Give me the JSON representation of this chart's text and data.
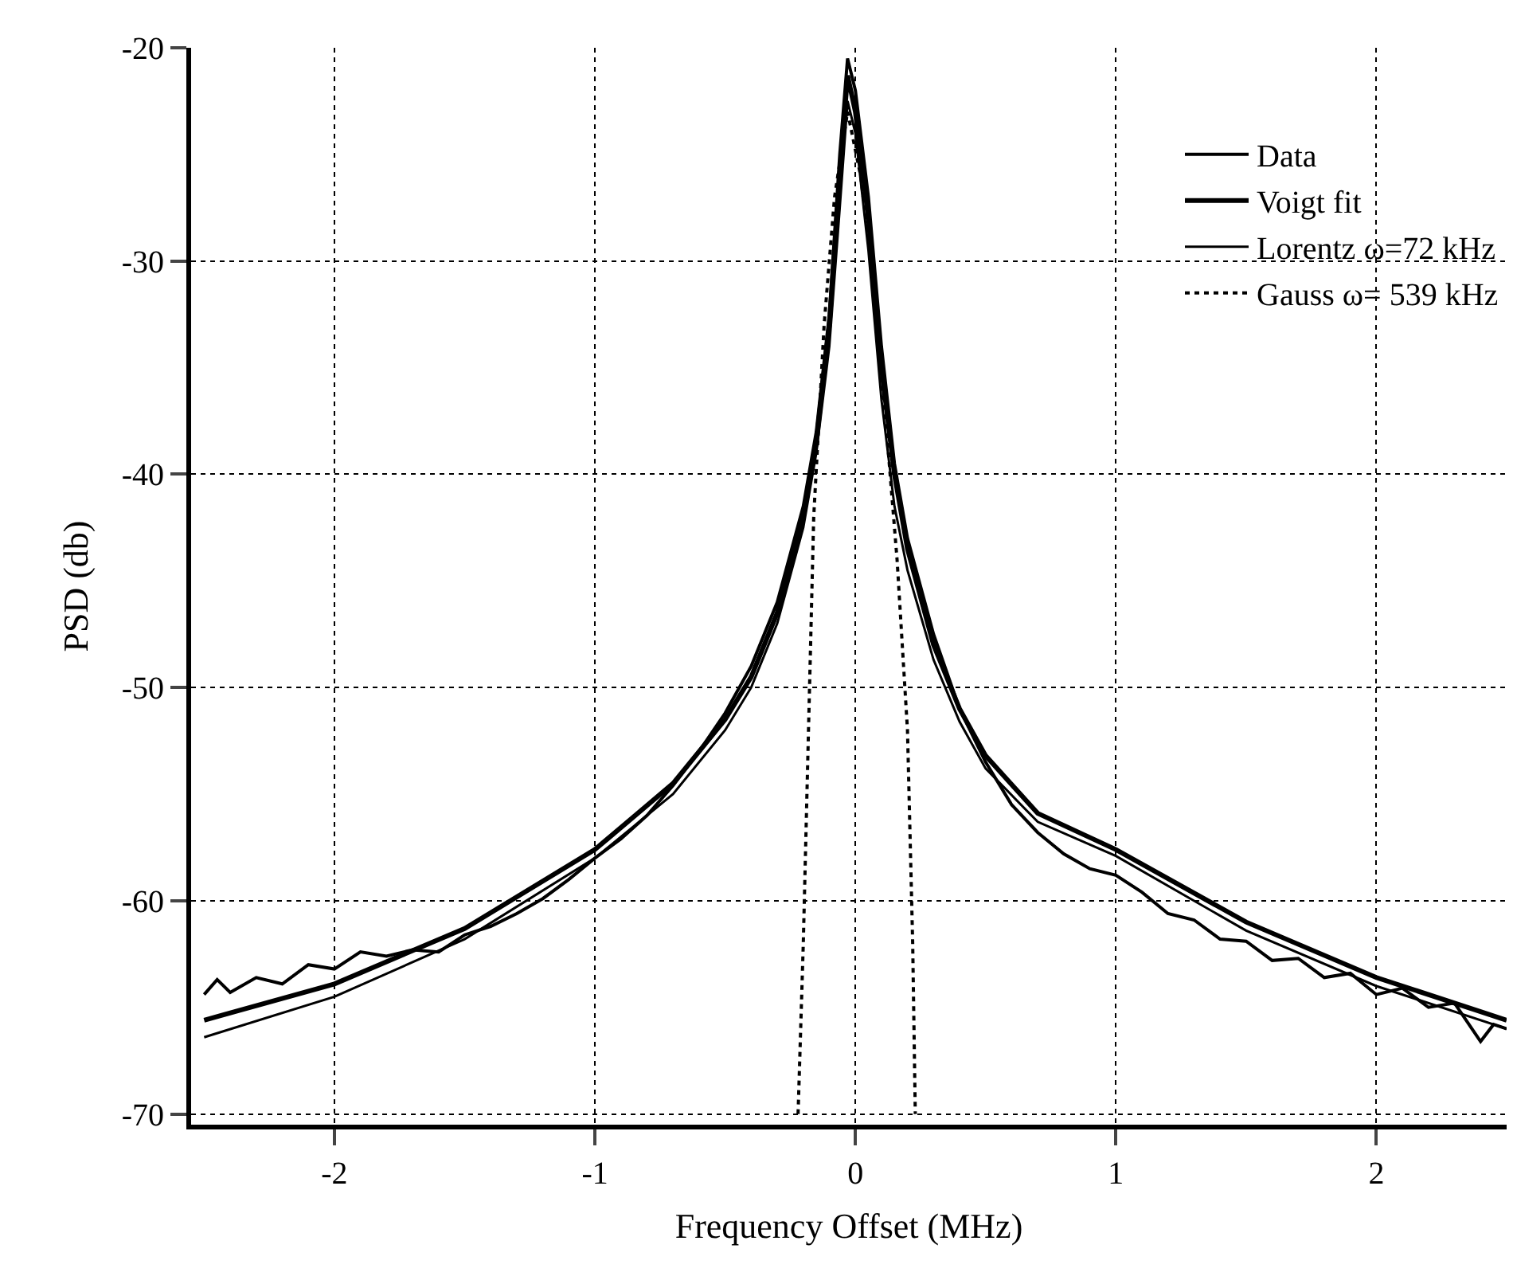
{
  "chart_data": {
    "type": "line",
    "xlabel": "Frequency Offset (MHz)",
    "ylabel": "PSD (db)",
    "xlim": [
      -2.55,
      2.5
    ],
    "xticks": [
      -2,
      -1,
      0,
      1,
      2
    ],
    "ylim": [
      -70.5,
      -20
    ],
    "yticks": [
      -70,
      -60,
      -50,
      -40,
      -30,
      -20
    ],
    "grid": true,
    "legend": "top right",
    "marker": "none",
    "series": [
      {
        "name": "Data",
        "color": "#000000",
        "line_style": "solid",
        "x": [
          -2.5,
          -2.45,
          -2.4,
          -2.3,
          -2.2,
          -2.1,
          -2.0,
          -1.9,
          -1.8,
          -1.7,
          -1.6,
          -1.5,
          -1.4,
          -1.3,
          -1.2,
          -1.1,
          -1.0,
          -0.9,
          -0.8,
          -0.7,
          -0.6,
          -0.5,
          -0.4,
          -0.3,
          -0.2,
          -0.15,
          -0.1,
          -0.06,
          -0.03,
          0.0,
          0.05,
          0.1,
          0.15,
          0.2,
          0.3,
          0.4,
          0.5,
          0.6,
          0.7,
          0.8,
          0.9,
          1.0,
          1.1,
          1.2,
          1.3,
          1.4,
          1.5,
          1.6,
          1.7,
          1.8,
          1.9,
          2.0,
          2.1,
          2.2,
          2.3,
          2.4,
          2.45,
          2.5
        ],
        "values": [
          -64.4,
          -63.7,
          -64.3,
          -63.6,
          -63.9,
          -63.0,
          -63.2,
          -62.4,
          -62.6,
          -62.3,
          -62.4,
          -61.6,
          -61.2,
          -60.6,
          -59.9,
          -59.0,
          -58.0,
          -57.1,
          -56.0,
          -54.6,
          -53.0,
          -51.2,
          -49.0,
          -46.0,
          -41.5,
          -38,
          -32.5,
          -25,
          -20.5,
          -22,
          -27,
          -34,
          -39.5,
          -43,
          -47.5,
          -51,
          -53.5,
          -55.5,
          -56.8,
          -57.8,
          -58.5,
          -58.8,
          -59.6,
          -60.6,
          -60.9,
          -61.8,
          -61.9,
          -62.8,
          -62.7,
          -63.6,
          -63.4,
          -64.4,
          -64.1,
          -65.0,
          -64.8,
          -66.6,
          -65.8,
          -66.0
        ]
      },
      {
        "name": "Voigt fit",
        "color": "#000000",
        "line_style": "solid",
        "x": [
          -2.5,
          -2,
          -1.5,
          -1,
          -0.7,
          -0.5,
          -0.4,
          -0.3,
          -0.2,
          -0.15,
          -0.1,
          -0.06,
          -0.03,
          0,
          0.05,
          0.1,
          0.15,
          0.2,
          0.3,
          0.4,
          0.5,
          0.7,
          1,
          1.5,
          2,
          2.5
        ],
        "values": [
          -65.6,
          -63.9,
          -61.3,
          -57.6,
          -54.5,
          -51.5,
          -49.5,
          -46.5,
          -42,
          -38.5,
          -33,
          -26,
          -21.3,
          -23,
          -28,
          -35,
          -40,
          -43.5,
          -48,
          -51,
          -53.2,
          -55.9,
          -57.6,
          -61.0,
          -63.6,
          -65.6
        ]
      },
      {
        "name": "Lorentz ω=72 kHz",
        "color": "#000000",
        "line_style": "solid",
        "x": [
          -2.5,
          -2,
          -1.5,
          -1,
          -0.7,
          -0.5,
          -0.4,
          -0.3,
          -0.2,
          -0.15,
          -0.1,
          -0.06,
          -0.03,
          0,
          0.05,
          0.1,
          0.15,
          0.2,
          0.3,
          0.4,
          0.5,
          0.7,
          1,
          1.5,
          2,
          2.5
        ],
        "values": [
          -66.4,
          -64.5,
          -61.8,
          -58.0,
          -55,
          -52,
          -50,
          -47,
          -42.5,
          -39,
          -34,
          -27.5,
          -22.5,
          -24,
          -29.5,
          -36.5,
          -41.5,
          -44.5,
          -48.7,
          -51.6,
          -53.8,
          -56.3,
          -57.9,
          -61.4,
          -64.0,
          -66.0
        ]
      },
      {
        "name": "Gauss ω= 539 kHz",
        "color": "#000000",
        "line_style": "dotted",
        "x": [
          -0.22,
          -0.2,
          -0.18,
          -0.16,
          -0.12,
          -0.08,
          -0.03,
          0.02,
          0.07,
          0.12,
          0.16,
          0.2,
          0.22,
          0.23
        ],
        "values": [
          -70,
          -62,
          -52,
          -42,
          -33,
          -27,
          -23,
          -26,
          -31,
          -38,
          -44,
          -52,
          -62,
          -70
        ]
      }
    ]
  }
}
